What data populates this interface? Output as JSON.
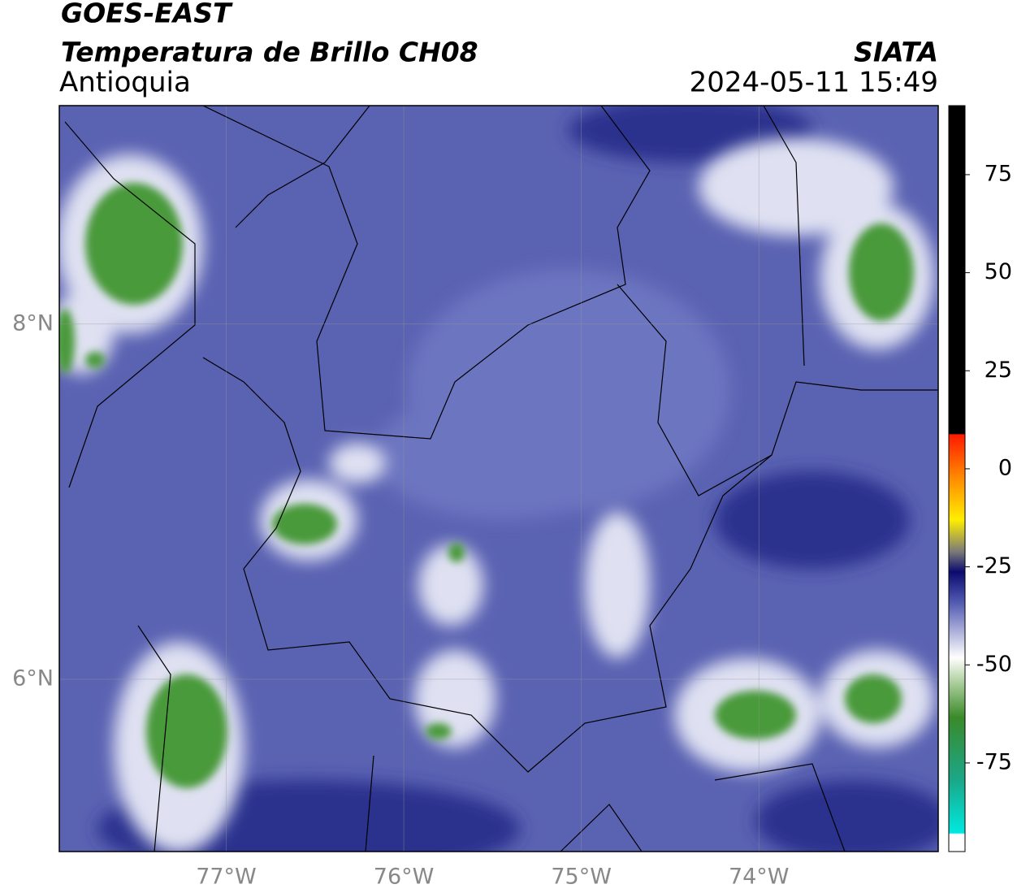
{
  "header": {
    "satellite": "GOES-EAST",
    "product": "Temperatura de Brillo CH08",
    "region": "Antioquia",
    "source": "SIATA",
    "datetime": "2024-05-11 15:49"
  },
  "map": {
    "xlim": [
      -77.94,
      -72.99
    ],
    "ylim": [
      5.03,
      9.23
    ],
    "xticks": [
      {
        "value": -77,
        "label": "77°W"
      },
      {
        "value": -76,
        "label": "76°W"
      },
      {
        "value": -75,
        "label": "75°W"
      },
      {
        "value": -74,
        "label": "74°W"
      }
    ],
    "yticks": [
      {
        "value": 8,
        "label": "8°N"
      },
      {
        "value": 6,
        "label": "6°N"
      }
    ],
    "grid": true
  },
  "colorbar": {
    "lim": [
      -97.6,
      92.6
    ],
    "ticks": [
      75,
      50,
      25,
      0,
      -25,
      -50,
      -75
    ]
  }
}
